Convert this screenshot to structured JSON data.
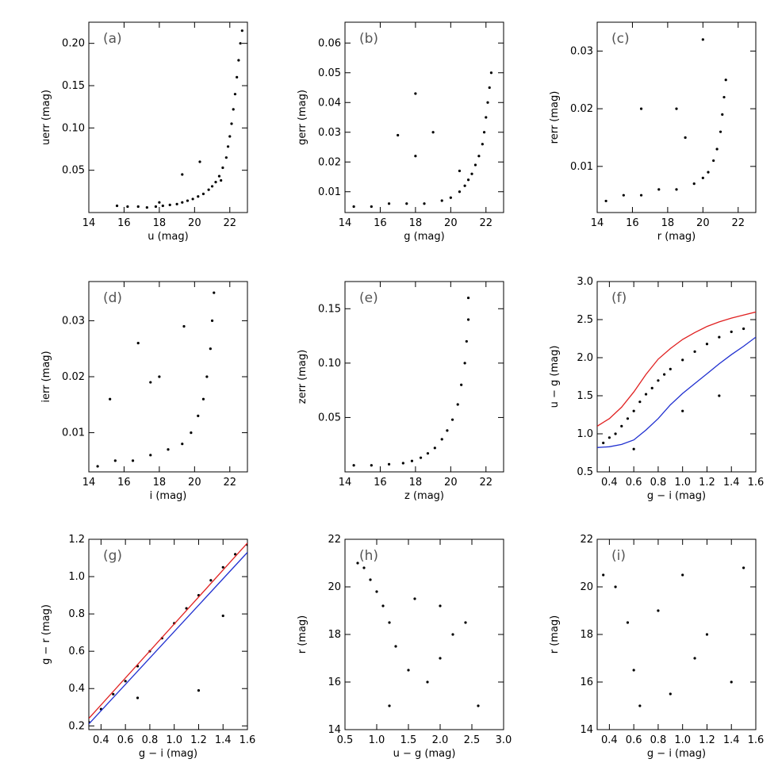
{
  "chart_data": [
    {
      "panel_label": "(a)",
      "type": "scatter",
      "xlabel": "u (mag)",
      "ylabel": "uerr (mag)",
      "xlim": [
        14,
        23
      ],
      "ylim": [
        0.0,
        0.225
      ],
      "xticks": [
        14,
        16,
        18,
        20,
        22
      ],
      "xtick_labels": [
        "14",
        "16",
        "18",
        "20",
        "22"
      ],
      "yticks": [
        0.05,
        0.1,
        0.15,
        0.2
      ],
      "ytick_labels": [
        "0.05",
        "0.10",
        "0.15",
        "0.20"
      ],
      "points": [
        [
          15.6,
          0.008
        ],
        [
          16.2,
          0.007
        ],
        [
          16.8,
          0.007
        ],
        [
          17.3,
          0.006
        ],
        [
          17.8,
          0.007
        ],
        [
          18.2,
          0.008
        ],
        [
          18.6,
          0.009
        ],
        [
          19.0,
          0.01
        ],
        [
          19.3,
          0.012
        ],
        [
          19.6,
          0.014
        ],
        [
          19.9,
          0.016
        ],
        [
          20.2,
          0.019
        ],
        [
          20.5,
          0.022
        ],
        [
          20.8,
          0.027
        ],
        [
          21.0,
          0.031
        ],
        [
          21.2,
          0.036
        ],
        [
          21.4,
          0.043
        ],
        [
          21.6,
          0.053
        ],
        [
          21.8,
          0.065
        ],
        [
          21.9,
          0.078
        ],
        [
          22.0,
          0.09
        ],
        [
          22.1,
          0.105
        ],
        [
          22.2,
          0.122
        ],
        [
          22.3,
          0.14
        ],
        [
          22.4,
          0.16
        ],
        [
          22.5,
          0.18
        ],
        [
          22.6,
          0.2
        ],
        [
          22.7,
          0.215
        ],
        [
          19.3,
          0.045
        ],
        [
          20.3,
          0.06
        ],
        [
          18.0,
          0.012
        ],
        [
          21.5,
          0.038
        ]
      ]
    },
    {
      "panel_label": "(b)",
      "type": "scatter",
      "xlabel": "g (mag)",
      "ylabel": "gerr (mag)",
      "xlim": [
        14,
        23
      ],
      "ylim": [
        0.003,
        0.067
      ],
      "xticks": [
        14,
        16,
        18,
        20,
        22
      ],
      "xtick_labels": [
        "14",
        "16",
        "18",
        "20",
        "22"
      ],
      "yticks": [
        0.01,
        0.02,
        0.03,
        0.04,
        0.05,
        0.06
      ],
      "ytick_labels": [
        "0.01",
        "0.02",
        "0.03",
        "0.04",
        "0.05",
        "0.06"
      ],
      "points": [
        [
          14.5,
          0.005
        ],
        [
          15.5,
          0.005
        ],
        [
          16.5,
          0.006
        ],
        [
          17.5,
          0.006
        ],
        [
          18.5,
          0.006
        ],
        [
          19.5,
          0.007
        ],
        [
          20.0,
          0.008
        ],
        [
          20.5,
          0.01
        ],
        [
          20.8,
          0.012
        ],
        [
          21.0,
          0.014
        ],
        [
          21.2,
          0.016
        ],
        [
          21.4,
          0.019
        ],
        [
          21.6,
          0.022
        ],
        [
          21.8,
          0.026
        ],
        [
          21.9,
          0.03
        ],
        [
          22.0,
          0.035
        ],
        [
          22.1,
          0.04
        ],
        [
          22.2,
          0.045
        ],
        [
          22.3,
          0.05
        ],
        [
          18.0,
          0.043
        ],
        [
          19.0,
          0.03
        ],
        [
          17.0,
          0.029
        ],
        [
          18.0,
          0.022
        ],
        [
          20.5,
          0.017
        ]
      ]
    },
    {
      "panel_label": "(c)",
      "type": "scatter",
      "xlabel": "r (mag)",
      "ylabel": "rerr (mag)",
      "xlim": [
        14,
        23
      ],
      "ylim": [
        0.002,
        0.035
      ],
      "xticks": [
        14,
        16,
        18,
        20,
        22
      ],
      "xtick_labels": [
        "14",
        "16",
        "18",
        "20",
        "22"
      ],
      "yticks": [
        0.01,
        0.02,
        0.03
      ],
      "ytick_labels": [
        "0.01",
        "0.02",
        "0.03"
      ],
      "points": [
        [
          14.5,
          0.004
        ],
        [
          15.5,
          0.005
        ],
        [
          16.5,
          0.005
        ],
        [
          17.5,
          0.006
        ],
        [
          18.5,
          0.006
        ],
        [
          19.5,
          0.007
        ],
        [
          20.0,
          0.008
        ],
        [
          20.3,
          0.009
        ],
        [
          20.6,
          0.011
        ],
        [
          20.8,
          0.013
        ],
        [
          21.0,
          0.016
        ],
        [
          21.1,
          0.019
        ],
        [
          21.2,
          0.022
        ],
        [
          21.3,
          0.025
        ],
        [
          20.0,
          0.032
        ],
        [
          18.5,
          0.02
        ],
        [
          16.5,
          0.02
        ],
        [
          19.0,
          0.015
        ]
      ]
    },
    {
      "panel_label": "(d)",
      "type": "scatter",
      "xlabel": "i (mag)",
      "ylabel": "ierr (mag)",
      "xlim": [
        14,
        23
      ],
      "ylim": [
        0.003,
        0.037
      ],
      "xticks": [
        14,
        16,
        18,
        20,
        22
      ],
      "xtick_labels": [
        "14",
        "16",
        "18",
        "20",
        "22"
      ],
      "yticks": [
        0.01,
        0.02,
        0.03
      ],
      "ytick_labels": [
        "0.01",
        "0.02",
        "0.03"
      ],
      "points": [
        [
          14.5,
          0.004
        ],
        [
          15.5,
          0.005
        ],
        [
          16.5,
          0.005
        ],
        [
          17.5,
          0.006
        ],
        [
          18.5,
          0.007
        ],
        [
          19.3,
          0.008
        ],
        [
          19.8,
          0.01
        ],
        [
          20.2,
          0.013
        ],
        [
          20.5,
          0.016
        ],
        [
          20.7,
          0.02
        ],
        [
          20.9,
          0.025
        ],
        [
          21.0,
          0.03
        ],
        [
          21.1,
          0.035
        ],
        [
          19.4,
          0.029
        ],
        [
          16.8,
          0.026
        ],
        [
          18.0,
          0.02
        ],
        [
          17.5,
          0.019
        ],
        [
          15.2,
          0.016
        ]
      ]
    },
    {
      "panel_label": "(e)",
      "type": "scatter",
      "xlabel": "z (mag)",
      "ylabel": "zerr (mag)",
      "xlim": [
        14,
        23
      ],
      "ylim": [
        0.0,
        0.175
      ],
      "xticks": [
        14,
        16,
        18,
        20,
        22
      ],
      "xtick_labels": [
        "14",
        "16",
        "18",
        "20",
        "22"
      ],
      "yticks": [
        0.05,
        0.1,
        0.15
      ],
      "ytick_labels": [
        "0.05",
        "0.10",
        "0.15"
      ],
      "points": [
        [
          14.5,
          0.006
        ],
        [
          15.5,
          0.006
        ],
        [
          16.5,
          0.007
        ],
        [
          17.3,
          0.008
        ],
        [
          17.8,
          0.01
        ],
        [
          18.3,
          0.013
        ],
        [
          18.7,
          0.017
        ],
        [
          19.1,
          0.022
        ],
        [
          19.5,
          0.03
        ],
        [
          19.8,
          0.038
        ],
        [
          20.1,
          0.048
        ],
        [
          20.4,
          0.062
        ],
        [
          20.6,
          0.08
        ],
        [
          20.8,
          0.1
        ],
        [
          20.9,
          0.12
        ],
        [
          21.0,
          0.14
        ],
        [
          21.0,
          0.16
        ]
      ]
    },
    {
      "panel_label": "(f)",
      "type": "scatter",
      "xlabel": "g − i (mag)",
      "ylabel": "u − g (mag)",
      "xlim": [
        0.3,
        1.6
      ],
      "ylim": [
        0.5,
        3.0
      ],
      "xticks": [
        0.4,
        0.6,
        0.8,
        1.0,
        1.2,
        1.4,
        1.6
      ],
      "xtick_labels": [
        "0.4",
        "0.6",
        "0.8",
        "1.0",
        "1.2",
        "1.4",
        "1.6"
      ],
      "yticks": [
        0.5,
        1.0,
        1.5,
        2.0,
        2.5,
        3.0
      ],
      "ytick_labels": [
        "0.5",
        "1.0",
        "1.5",
        "2.0",
        "2.5",
        "3.0"
      ],
      "points": [
        [
          0.35,
          0.88
        ],
        [
          0.4,
          0.95
        ],
        [
          0.45,
          1.0
        ],
        [
          0.5,
          1.1
        ],
        [
          0.55,
          1.2
        ],
        [
          0.6,
          1.3
        ],
        [
          0.65,
          1.42
        ],
        [
          0.7,
          1.52
        ],
        [
          0.75,
          1.6
        ],
        [
          0.8,
          1.7
        ],
        [
          0.85,
          1.78
        ],
        [
          0.9,
          1.85
        ],
        [
          1.0,
          1.97
        ],
        [
          1.1,
          2.08
        ],
        [
          1.2,
          2.18
        ],
        [
          1.3,
          2.27
        ],
        [
          1.4,
          2.34
        ],
        [
          1.5,
          2.38
        ],
        [
          0.6,
          0.8
        ],
        [
          1.0,
          1.3
        ],
        [
          1.3,
          1.5
        ]
      ],
      "series": [
        {
          "color": "#e02020",
          "x": [
            0.3,
            0.4,
            0.5,
            0.6,
            0.7,
            0.8,
            0.9,
            1.0,
            1.1,
            1.2,
            1.3,
            1.4,
            1.5,
            1.6
          ],
          "y": [
            1.1,
            1.2,
            1.35,
            1.55,
            1.78,
            1.98,
            2.12,
            2.24,
            2.33,
            2.41,
            2.47,
            2.52,
            2.56,
            2.6
          ]
        },
        {
          "color": "#2030d0",
          "x": [
            0.3,
            0.4,
            0.5,
            0.6,
            0.7,
            0.8,
            0.9,
            1.0,
            1.1,
            1.2,
            1.3,
            1.4,
            1.5,
            1.6
          ],
          "y": [
            0.82,
            0.83,
            0.86,
            0.92,
            1.05,
            1.2,
            1.38,
            1.53,
            1.66,
            1.79,
            1.92,
            2.04,
            2.15,
            2.27
          ]
        }
      ]
    },
    {
      "panel_label": "(g)",
      "type": "scatter",
      "xlabel": "g − i (mag)",
      "ylabel": "g − r (mag)",
      "xlim": [
        0.3,
        1.6
      ],
      "ylim": [
        0.18,
        1.2
      ],
      "xticks": [
        0.4,
        0.6,
        0.8,
        1.0,
        1.2,
        1.4,
        1.6
      ],
      "xtick_labels": [
        "0.4",
        "0.6",
        "0.8",
        "1.0",
        "1.2",
        "1.4",
        "1.6"
      ],
      "yticks": [
        0.2,
        0.4,
        0.6,
        0.8,
        1.0,
        1.2
      ],
      "ytick_labels": [
        "0.2",
        "0.4",
        "0.6",
        "0.8",
        "1.0",
        "1.2"
      ],
      "points": [
        [
          0.3,
          0.22
        ],
        [
          0.4,
          0.29
        ],
        [
          0.5,
          0.37
        ],
        [
          0.6,
          0.44
        ],
        [
          0.7,
          0.52
        ],
        [
          0.8,
          0.6
        ],
        [
          0.9,
          0.67
        ],
        [
          1.0,
          0.75
        ],
        [
          1.1,
          0.83
        ],
        [
          1.2,
          0.9
        ],
        [
          1.3,
          0.98
        ],
        [
          1.4,
          1.05
        ],
        [
          1.5,
          1.12
        ],
        [
          1.6,
          1.17
        ],
        [
          1.2,
          0.39
        ],
        [
          1.4,
          0.79
        ],
        [
          0.7,
          0.35
        ]
      ],
      "series": [
        {
          "color": "#e02020",
          "x": [
            0.3,
            1.6
          ],
          "y": [
            0.24,
            1.18
          ]
        },
        {
          "color": "#2030d0",
          "x": [
            0.3,
            1.6
          ],
          "y": [
            0.21,
            1.13
          ]
        }
      ]
    },
    {
      "panel_label": "(h)",
      "type": "scatter",
      "xlabel": "u − g (mag)",
      "ylabel": "r (mag)",
      "xlim": [
        0.5,
        3.0
      ],
      "ylim": [
        14,
        22
      ],
      "xticks": [
        0.5,
        1.0,
        1.5,
        2.0,
        2.5,
        3.0
      ],
      "xtick_labels": [
        "0.5",
        "1.0",
        "1.5",
        "2.0",
        "2.5",
        "3.0"
      ],
      "yticks": [
        14,
        16,
        18,
        20,
        22
      ],
      "ytick_labels": [
        "14",
        "16",
        "18",
        "20",
        "22"
      ],
      "points": [
        [
          0.7,
          21.0
        ],
        [
          0.8,
          20.8
        ],
        [
          0.9,
          20.3
        ],
        [
          1.0,
          19.8
        ],
        [
          1.1,
          19.2
        ],
        [
          1.2,
          18.5
        ],
        [
          1.3,
          17.5
        ],
        [
          1.5,
          16.5
        ],
        [
          1.8,
          16.0
        ],
        [
          2.0,
          17.0
        ],
        [
          2.2,
          18.0
        ],
        [
          2.4,
          18.5
        ],
        [
          2.6,
          15.0
        ],
        [
          1.2,
          15.0
        ],
        [
          1.6,
          19.5
        ],
        [
          2.0,
          19.2
        ]
      ]
    },
    {
      "panel_label": "(i)",
      "type": "scatter",
      "xlabel": "g − i (mag)",
      "ylabel": "r (mag)",
      "xlim": [
        0.3,
        1.6
      ],
      "ylim": [
        14,
        22
      ],
      "xticks": [
        0.4,
        0.6,
        0.8,
        1.0,
        1.2,
        1.4,
        1.6
      ],
      "xtick_labels": [
        "0.4",
        "0.6",
        "0.8",
        "1.0",
        "1.2",
        "1.4",
        "1.6"
      ],
      "yticks": [
        14,
        16,
        18,
        20,
        22
      ],
      "ytick_labels": [
        "14",
        "16",
        "18",
        "20",
        "22"
      ],
      "points": [
        [
          0.35,
          20.5
        ],
        [
          0.45,
          20.0
        ],
        [
          0.55,
          18.5
        ],
        [
          0.6,
          16.5
        ],
        [
          0.65,
          15.0
        ],
        [
          0.8,
          19.0
        ],
        [
          1.0,
          20.5
        ],
        [
          1.2,
          18.0
        ],
        [
          1.4,
          16.0
        ],
        [
          1.5,
          20.8
        ],
        [
          0.9,
          15.5
        ],
        [
          1.1,
          17.0
        ]
      ]
    }
  ]
}
